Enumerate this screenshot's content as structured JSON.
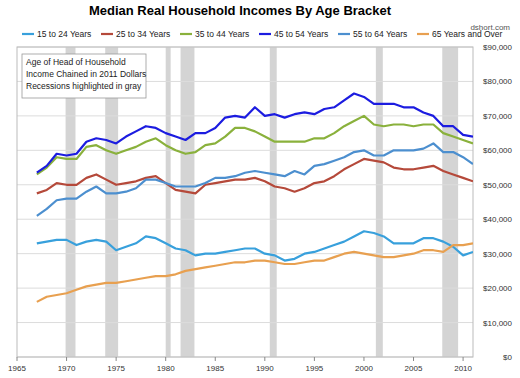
{
  "chart_data": {
    "type": "line",
    "title": "Median Real Household Incomes By Age Bracket",
    "source": "dshort.com",
    "annotation": [
      "Age of Head of Household",
      "Income Chained in 2011 Dollars",
      "Recessions highlighted in gray"
    ],
    "x": [
      1967,
      1968,
      1969,
      1970,
      1971,
      1972,
      1973,
      1974,
      1975,
      1976,
      1977,
      1978,
      1979,
      1980,
      1981,
      1982,
      1983,
      1984,
      1985,
      1986,
      1987,
      1988,
      1989,
      1990,
      1991,
      1992,
      1993,
      1994,
      1995,
      1996,
      1997,
      1998,
      1999,
      2000,
      2001,
      2002,
      2003,
      2004,
      2005,
      2006,
      2007,
      2008,
      2009,
      2010,
      2011
    ],
    "series": [
      {
        "name": "15 to 24 Years",
        "color": "#38a0dc",
        "values": [
          33000,
          33500,
          34000,
          34000,
          32500,
          33500,
          34000,
          33500,
          31000,
          32000,
          33000,
          35000,
          34500,
          33000,
          31500,
          31000,
          29500,
          30000,
          30000,
          30500,
          31000,
          31500,
          31500,
          30000,
          29500,
          28000,
          28500,
          30000,
          30500,
          31500,
          32500,
          33500,
          35000,
          36500,
          36000,
          35000,
          33000,
          33000,
          33000,
          34500,
          34500,
          33500,
          32000,
          29500,
          30500
        ]
      },
      {
        "name": "25 to 34 Years",
        "color": "#b5493a",
        "values": [
          47500,
          48500,
          50500,
          50000,
          50000,
          52000,
          53000,
          51500,
          50000,
          50500,
          51000,
          52000,
          52500,
          50500,
          48500,
          48000,
          47500,
          50000,
          50500,
          51000,
          51500,
          51500,
          52000,
          51000,
          49500,
          49000,
          48000,
          49000,
          50500,
          51000,
          52500,
          54500,
          56000,
          57500,
          57000,
          56500,
          55000,
          54500,
          54500,
          55000,
          55500,
          54000,
          53000,
          52000,
          51000
        ]
      },
      {
        "name": "35 to 44 Years",
        "color": "#8ab13c",
        "values": [
          53000,
          55000,
          58000,
          57500,
          57500,
          61000,
          61500,
          60000,
          59000,
          60000,
          61000,
          62500,
          63500,
          61500,
          60000,
          59000,
          59500,
          61500,
          62000,
          64000,
          66500,
          66500,
          65500,
          64000,
          62500,
          62500,
          62500,
          62500,
          63500,
          63500,
          65000,
          67000,
          68500,
          70000,
          67500,
          67000,
          67500,
          67500,
          67000,
          67500,
          67500,
          65000,
          64000,
          63000,
          62000
        ]
      },
      {
        "name": "45 to 54 Years",
        "color": "#1c1ce0",
        "values": [
          53500,
          55500,
          59000,
          58500,
          59000,
          62500,
          63500,
          63000,
          62000,
          64000,
          65500,
          67000,
          66500,
          65000,
          64000,
          63000,
          65000,
          65000,
          66500,
          69500,
          70000,
          69500,
          72500,
          70000,
          70500,
          69500,
          70500,
          71000,
          70500,
          72000,
          72500,
          74500,
          76500,
          75500,
          73500,
          73500,
          73500,
          72500,
          72500,
          71000,
          70000,
          67000,
          67000,
          64500,
          64000
        ]
      },
      {
        "name": "55 to 64 Years",
        "color": "#4c8fcf",
        "values": [
          41000,
          43000,
          45500,
          46000,
          46000,
          48000,
          49500,
          47500,
          47500,
          48000,
          49000,
          51500,
          51500,
          50500,
          49500,
          49500,
          49500,
          50500,
          52000,
          52000,
          52500,
          53500,
          54000,
          53500,
          53000,
          52500,
          54000,
          53000,
          55500,
          56000,
          57000,
          58000,
          59500,
          60000,
          58500,
          58500,
          60000,
          60000,
          60000,
          60500,
          62000,
          59500,
          59500,
          58000,
          56000
        ]
      },
      {
        "name": "65 Years and Over",
        "color": "#e8a050",
        "values": [
          16000,
          17500,
          18000,
          18500,
          19500,
          20500,
          21000,
          21500,
          21500,
          22000,
          22500,
          23000,
          23500,
          23500,
          24000,
          25000,
          25500,
          26000,
          26500,
          27000,
          27500,
          27500,
          28000,
          28000,
          27500,
          27000,
          27000,
          27500,
          28000,
          28000,
          29000,
          30000,
          30500,
          30000,
          29500,
          29000,
          29000,
          29500,
          30000,
          31000,
          31000,
          30500,
          32500,
          32500,
          33000
        ]
      }
    ],
    "recessions": [
      [
        1969.9,
        1970.9
      ],
      [
        1973.9,
        1975.2
      ],
      [
        1980.0,
        1980.5
      ],
      [
        1981.5,
        1982.9
      ],
      [
        1990.5,
        1991.2
      ],
      [
        2001.2,
        2001.9
      ],
      [
        2007.9,
        2009.5
      ]
    ],
    "xlim": [
      1965,
      2011
    ],
    "xticks": [
      1965,
      1970,
      1975,
      1980,
      1985,
      1990,
      1995,
      2000,
      2005,
      2010
    ],
    "ylim": [
      0,
      90000
    ],
    "yticks": [
      {
        "value": 0,
        "label": "$0"
      },
      {
        "value": 10000,
        "label": "$10,000"
      },
      {
        "value": 20000,
        "label": "$20,000"
      },
      {
        "value": 30000,
        "label": "$30,000"
      },
      {
        "value": 40000,
        "label": "$40,000"
      },
      {
        "value": 50000,
        "label": "$50,000"
      },
      {
        "value": 60000,
        "label": "$60,000"
      },
      {
        "value": 70000,
        "label": "$70,000"
      },
      {
        "value": 80000,
        "label": "$80,000"
      },
      {
        "value": 90000,
        "label": "$90,000"
      }
    ],
    "grid": true,
    "legend": "top"
  }
}
